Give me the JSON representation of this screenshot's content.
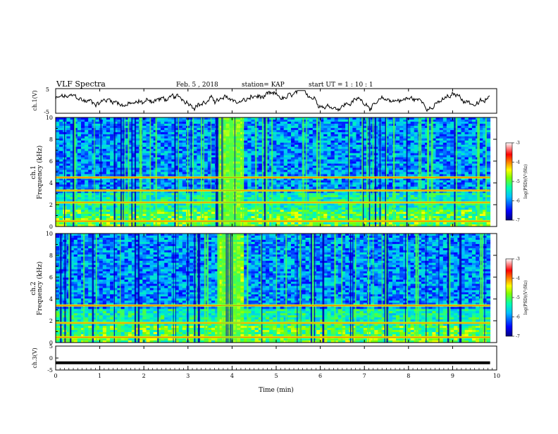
{
  "header": {
    "title": "VLF Spectra",
    "date": "Feb. 5 , 2018",
    "station": "station= KAP",
    "start": "start  UT =   1 : 10 : 1"
  },
  "chart_data": [
    {
      "type": "line",
      "name": "ch1_waveform",
      "ylabel": "ch.1(V)",
      "ylim": [
        -5,
        5
      ],
      "yticks": [
        "5",
        "-5"
      ],
      "xlim": [
        0,
        10
      ],
      "x_end_min": 9.85,
      "mean": 0,
      "amplitude_approx": 2.5
    },
    {
      "type": "heatmap",
      "name": "ch1_spectrogram",
      "ylabel": "ch.1\nFrequency (kHz)",
      "ylim": [
        0,
        10
      ],
      "yticks": [
        "0",
        "2",
        "4",
        "6",
        "8",
        "10"
      ],
      "xlim": [
        0,
        10
      ],
      "x_end_min": 9.85,
      "colorbar": {
        "label": "log(PSD)(V²/Hz)",
        "range": [
          -7,
          -3
        ],
        "ticks": [
          "-3",
          "-4",
          "-5",
          "-6",
          "-7"
        ]
      },
      "strong_bands_khz": [
        0.5,
        2.2,
        3.3,
        4.5
      ],
      "burst_interval_min": [
        3.75,
        4.2
      ]
    },
    {
      "type": "heatmap",
      "name": "ch2_spectrogram",
      "ylabel": "ch.2\nFrequency (kHz)",
      "ylim": [
        0,
        10
      ],
      "yticks": [
        "0",
        "2",
        "4",
        "6",
        "8",
        "10"
      ],
      "xlim": [
        0,
        10
      ],
      "x_end_min": 9.85,
      "colorbar": {
        "label": "log(PSD)(V²/Hz)",
        "range": [
          -7,
          -3
        ],
        "ticks": [
          "-3",
          "-4",
          "-5",
          "-6",
          "-7"
        ]
      },
      "strong_bands_khz": [
        0.5,
        1.8,
        3.4
      ],
      "burst_interval_min": [
        3.75,
        4.2
      ]
    },
    {
      "type": "line",
      "name": "ch3_waveform",
      "ylabel": "ch.3(V)",
      "ylim": [
        -5,
        5
      ],
      "yticks": [
        "5",
        "0",
        "-5"
      ],
      "xlim": [
        0,
        10
      ],
      "x_end_min": 9.85,
      "constant_value": -2
    }
  ],
  "xaxis": {
    "label": "Time  (min)",
    "ticks": [
      "0",
      "1",
      "2",
      "3",
      "4",
      "5",
      "6",
      "7",
      "8",
      "9",
      "10"
    ]
  },
  "colors": {
    "colormap": [
      "#00007f",
      "#0000ff",
      "#00bfff",
      "#00ffb0",
      "#7fff00",
      "#ffff00",
      "#ff8000",
      "#ff0000",
      "#ffffff"
    ]
  }
}
